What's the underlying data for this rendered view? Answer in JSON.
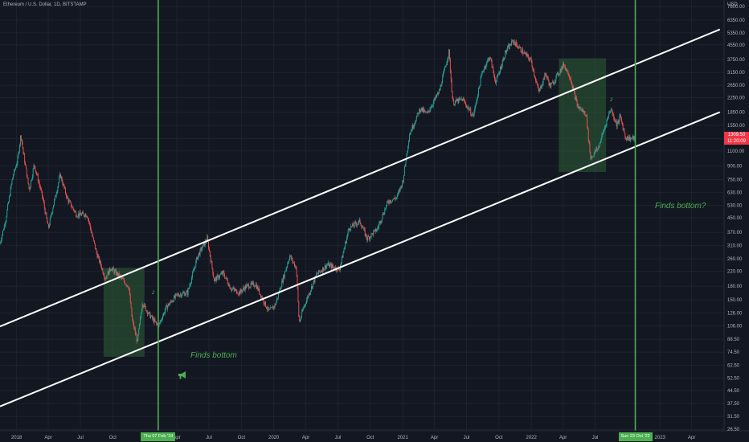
{
  "header": {
    "title": "Ethereum / U.S. Dollar, 1D, BITSTAMP",
    "currency": "USD"
  },
  "price_tag": {
    "price": "1309.50",
    "countdown": "11:20:09"
  },
  "markers": [
    {
      "label": "Thu 07 Feb '19"
    },
    {
      "label": "Sun 23 Oct '22"
    }
  ],
  "annotations": {
    "left": "Finds bottom",
    "right": "Finds bottom?",
    "wave_label": "2"
  },
  "colors": {
    "background": "#131722",
    "up": "#26a69a",
    "down": "#ef5350",
    "marker": "#4caf50",
    "channel": "#ffffff",
    "zone": "#2e5f36"
  },
  "chart_data": {
    "type": "candlestick",
    "title": "Ethereum / U.S. Dollar, 1D, BITSTAMP",
    "yscale": "log",
    "ylabel": "USD",
    "ylim": [
      26,
      8300
    ],
    "y_ticks": [
      "7600.00",
      "6350.00",
      "5350.00",
      "4550.00",
      "3750.00",
      "3150.00",
      "2650.00",
      "2250.00",
      "1850.00",
      "1550.00",
      "1300.00",
      "1100.00",
      "900.00",
      "750.00",
      "630.00",
      "530.00",
      "450.00",
      "370.00",
      "310.00",
      "260.00",
      "220.00",
      "180.00",
      "150.00",
      "126.00",
      "106.00",
      "88.50",
      "74.50",
      "62.50",
      "52.50",
      "44.50",
      "37.50",
      "31.50",
      "26.50"
    ],
    "xlim": [
      "2017-11-15",
      "2023-07-02"
    ],
    "x_ticks": [
      {
        "label": "2018",
        "date": "2018-01-01"
      },
      {
        "label": "Apr",
        "date": "2018-04-01"
      },
      {
        "label": "Jul",
        "date": "2018-07-01"
      },
      {
        "label": "Oct",
        "date": "2018-10-01"
      },
      {
        "label": "Apr",
        "date": "2019-04-01"
      },
      {
        "label": "Jul",
        "date": "2019-07-01"
      },
      {
        "label": "Oct",
        "date": "2019-10-01"
      },
      {
        "label": "2020",
        "date": "2020-01-01"
      },
      {
        "label": "Apr",
        "date": "2020-04-01"
      },
      {
        "label": "Jul",
        "date": "2020-07-01"
      },
      {
        "label": "Oct",
        "date": "2020-10-01"
      },
      {
        "label": "2021",
        "date": "2021-01-01"
      },
      {
        "label": "Apr",
        "date": "2021-04-01"
      },
      {
        "label": "Jul",
        "date": "2021-07-01"
      },
      {
        "label": "Oct",
        "date": "2021-10-01"
      },
      {
        "label": "2022",
        "date": "2022-01-01"
      },
      {
        "label": "Apr",
        "date": "2022-04-01"
      },
      {
        "label": "Jul",
        "date": "2022-07-01"
      },
      {
        "label": "2023",
        "date": "2023-01-01"
      },
      {
        "label": "Apr",
        "date": "2023-04-01"
      }
    ],
    "close_path": [
      [
        "2017-11-15",
        320
      ],
      [
        "2017-12-01",
        440
      ],
      [
        "2017-12-20",
        760
      ],
      [
        "2018-01-05",
        1000
      ],
      [
        "2018-01-13",
        1380
      ],
      [
        "2018-01-20",
        1080
      ],
      [
        "2018-02-06",
        650
      ],
      [
        "2018-02-20",
        920
      ],
      [
        "2018-03-15",
        600
      ],
      [
        "2018-04-01",
        390
      ],
      [
        "2018-04-15",
        530
      ],
      [
        "2018-05-05",
        800
      ],
      [
        "2018-05-25",
        580
      ],
      [
        "2018-06-20",
        470
      ],
      [
        "2018-07-20",
        470
      ],
      [
        "2018-08-15",
        285
      ],
      [
        "2018-09-10",
        200
      ],
      [
        "2018-09-25",
        230
      ],
      [
        "2018-10-20",
        205
      ],
      [
        "2018-11-15",
        180
      ],
      [
        "2018-11-25",
        115
      ],
      [
        "2018-12-10",
        85
      ],
      [
        "2018-12-24",
        145
      ],
      [
        "2019-01-10",
        125
      ],
      [
        "2019-02-07",
        105
      ],
      [
        "2019-03-01",
        135
      ],
      [
        "2019-04-01",
        160
      ],
      [
        "2019-05-01",
        165
      ],
      [
        "2019-05-30",
        270
      ],
      [
        "2019-06-26",
        340
      ],
      [
        "2019-07-16",
        195
      ],
      [
        "2019-08-10",
        215
      ],
      [
        "2019-09-01",
        175
      ],
      [
        "2019-09-25",
        165
      ],
      [
        "2019-10-15",
        180
      ],
      [
        "2019-11-10",
        185
      ],
      [
        "2019-12-18",
        128
      ],
      [
        "2020-01-05",
        140
      ],
      [
        "2020-02-15",
        270
      ],
      [
        "2020-03-05",
        230
      ],
      [
        "2020-03-13",
        110
      ],
      [
        "2020-03-25",
        135
      ],
      [
        "2020-05-01",
        210
      ],
      [
        "2020-06-01",
        240
      ],
      [
        "2020-07-05",
        225
      ],
      [
        "2020-08-01",
        390
      ],
      [
        "2020-09-01",
        430
      ],
      [
        "2020-09-22",
        340
      ],
      [
        "2020-10-20",
        385
      ],
      [
        "2020-11-20",
        560
      ],
      [
        "2020-12-15",
        590
      ],
      [
        "2021-01-01",
        730
      ],
      [
        "2021-01-20",
        1380
      ],
      [
        "2021-02-20",
        1950
      ],
      [
        "2021-03-10",
        1800
      ],
      [
        "2021-04-15",
        2450
      ],
      [
        "2021-05-12",
        4150
      ],
      [
        "2021-05-23",
        2100
      ],
      [
        "2021-06-20",
        2200
      ],
      [
        "2021-07-20",
        1750
      ],
      [
        "2021-08-15",
        3200
      ],
      [
        "2021-09-05",
        3900
      ],
      [
        "2021-09-22",
        2750
      ],
      [
        "2021-10-20",
        4150
      ],
      [
        "2021-11-10",
        4800
      ],
      [
        "2021-12-05",
        4200
      ],
      [
        "2021-12-31",
        3700
      ],
      [
        "2022-01-22",
        2400
      ],
      [
        "2022-02-10",
        3100
      ],
      [
        "2022-02-24",
        2600
      ],
      [
        "2022-04-03",
        3500
      ],
      [
        "2022-04-20",
        3000
      ],
      [
        "2022-05-12",
        2000
      ],
      [
        "2022-06-05",
        1800
      ],
      [
        "2022-06-18",
        1000
      ],
      [
        "2022-07-10",
        1150
      ],
      [
        "2022-08-14",
        1950
      ],
      [
        "2022-09-01",
        1550
      ],
      [
        "2022-09-10",
        1750
      ],
      [
        "2022-09-25",
        1320
      ],
      [
        "2022-10-10",
        1300
      ],
      [
        "2022-10-23",
        1309.5
      ]
    ],
    "channel_lines": [
      {
        "name": "upper",
        "from": [
          "2017-11-15",
          105
        ],
        "to": [
          "2023-06-20",
          5600
        ]
      },
      {
        "name": "lower",
        "from": [
          "2017-11-15",
          36
        ],
        "to": [
          "2023-06-20",
          1850
        ]
      }
    ],
    "vertical_markers": [
      {
        "date": "2019-02-07",
        "label": "Thu 07 Feb '19"
      },
      {
        "date": "2022-10-23",
        "label": "Sun 23 Oct '22"
      }
    ],
    "zones": [
      {
        "x": [
          "2018-09-05",
          "2018-12-30"
        ],
        "y": [
          70,
          230
        ]
      },
      {
        "x": [
          "2022-03-20",
          "2022-08-01"
        ],
        "y": [
          830,
          3800
        ]
      }
    ],
    "last_price": 1309.5
  }
}
